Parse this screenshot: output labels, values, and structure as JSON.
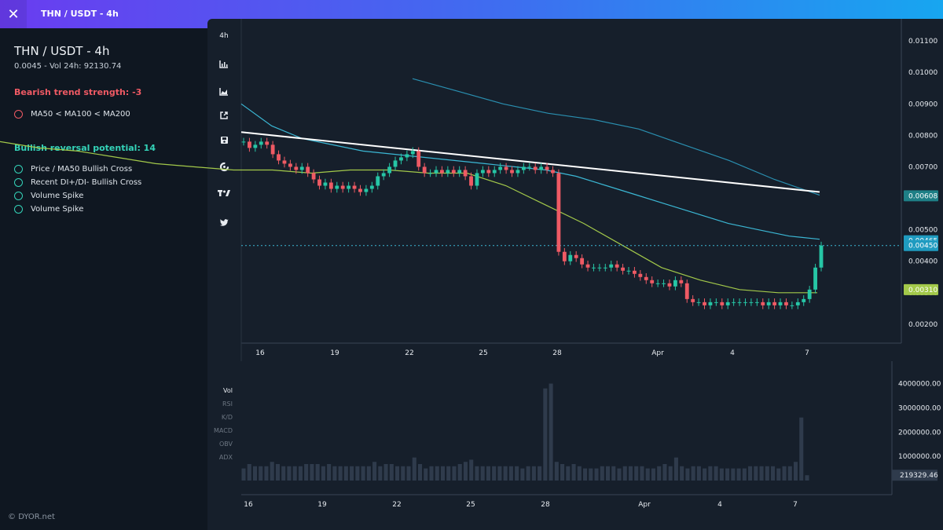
{
  "header": {
    "title": "THN / USDT - 4h",
    "close_icon": "close-icon"
  },
  "sidebar": {
    "pair": "THN / USDT - 4h",
    "subtitle": "0.0045 - Vol 24h: 92130.74",
    "bearish": {
      "title": "Bearish trend strength: -3",
      "signals": [
        "MA50 < MA100 < MA200"
      ]
    },
    "bullish": {
      "title": "Bullish reversal potential: 14",
      "signals": [
        "Price / MA50 Bullish Cross",
        "Recent DI+/DI- Bullish Cross",
        "Volume Spike",
        "Volume Spike"
      ]
    },
    "footer": "DYOR.net"
  },
  "toolbar": {
    "timeframe": "4h",
    "icons": [
      "bar-chart-icon",
      "area-chart-icon",
      "external-link-icon",
      "save-icon",
      "refresh-icon",
      "tradingview-icon",
      "twitter-icon"
    ]
  },
  "indicators": [
    "Vol",
    "RSI",
    "K/D",
    "MACD",
    "OBV",
    "ADX"
  ],
  "colors": {
    "up": "#26c6a6",
    "down": "#ef5a64",
    "ma50": "#a3c94a",
    "ma100": "#3bb7d4",
    "ma200": "#2a8fb0",
    "trendline": "#ffffff",
    "background": "#161f2b",
    "volume": "#2f3b4c"
  },
  "chart_data": {
    "type": "candlestick",
    "symbol": "THN / USDT",
    "timeframe": "4h",
    "price_axis": {
      "ticks": [
        "0.01100",
        "0.01000",
        "0.00900",
        "0.00800",
        "0.00700",
        "0.00500",
        "0.00400",
        "0.00300",
        "0.00200"
      ],
      "range": [
        0.0014,
        0.0117
      ]
    },
    "price_badges": [
      {
        "label": "0.00608",
        "color": "#1e7f86"
      },
      {
        "label": "0.00465",
        "color": "#1f9bc0"
      },
      {
        "label": "0.00450",
        "color": "#1f9bc0"
      },
      {
        "label": "0.00310",
        "color": "#a3c94a"
      }
    ],
    "last_price": 0.0045,
    "x_axis_labels": [
      "16",
      "19",
      "22",
      "25",
      "28",
      "Apr",
      "4",
      "7"
    ],
    "close": [
      0.0078,
      0.0076,
      0.0077,
      0.0078,
      0.0077,
      0.0074,
      0.0072,
      0.0071,
      0.007,
      0.0069,
      0.007,
      0.0068,
      0.0066,
      0.0064,
      0.0065,
      0.0063,
      0.0064,
      0.0063,
      0.0064,
      0.0063,
      0.0062,
      0.0063,
      0.0064,
      0.0067,
      0.0068,
      0.007,
      0.0072,
      0.0073,
      0.0074,
      0.0075,
      0.007,
      0.0068,
      0.0068,
      0.0069,
      0.0068,
      0.0069,
      0.0068,
      0.0069,
      0.0067,
      0.0064,
      0.0068,
      0.0069,
      0.0068,
      0.0069,
      0.007,
      0.0069,
      0.0068,
      0.0069,
      0.007,
      0.007,
      0.0069,
      0.007,
      0.0069,
      0.0068,
      0.0043,
      0.004,
      0.0042,
      0.0041,
      0.0039,
      0.0038,
      0.0038,
      0.0038,
      0.0038,
      0.0039,
      0.0038,
      0.0037,
      0.0037,
      0.0036,
      0.0035,
      0.0034,
      0.0033,
      0.0033,
      0.0033,
      0.0032,
      0.0034,
      0.0033,
      0.0028,
      0.0027,
      0.0027,
      0.0026,
      0.0027,
      0.0027,
      0.0026,
      0.0027,
      0.0027,
      0.0027,
      0.0027,
      0.0027,
      0.0027,
      0.0026,
      0.0027,
      0.0026,
      0.0027,
      0.0026,
      0.0026,
      0.0027,
      0.0028,
      0.0031,
      0.0038,
      0.0045
    ],
    "series": [
      {
        "name": "MA50",
        "values": [
          0.0078,
          0.0076,
          0.0075,
          0.0073,
          0.0071,
          0.007,
          0.0069,
          0.0069,
          0.0068,
          0.0069,
          0.0069,
          0.0068,
          0.0068,
          0.0064,
          0.0058,
          0.0052,
          0.0045,
          0.0038,
          0.0034,
          0.0031,
          0.003,
          0.003
        ]
      },
      {
        "name": "MA100",
        "values": [
          0.009,
          0.0083,
          0.0079,
          0.0077,
          0.0075,
          0.0074,
          0.0073,
          0.0072,
          0.0071,
          0.007,
          0.0069,
          0.0067,
          0.0064,
          0.0061,
          0.0058,
          0.0055,
          0.0052,
          0.005,
          0.0048,
          0.0047
        ]
      },
      {
        "name": "MA200",
        "values": [
          0.0098,
          0.0094,
          0.009,
          0.0087,
          0.0085,
          0.0082,
          0.0077,
          0.0072,
          0.0066,
          0.0061
        ]
      },
      {
        "name": "Trendline",
        "values": [
          0.0081,
          0.0062
        ]
      }
    ],
    "volume": {
      "axis_ticks": [
        "4000000.00",
        "3000000.00",
        "2000000.00",
        "1000000.00"
      ],
      "last_label": "219329.46",
      "range": [
        0,
        4600000
      ]
    }
  }
}
